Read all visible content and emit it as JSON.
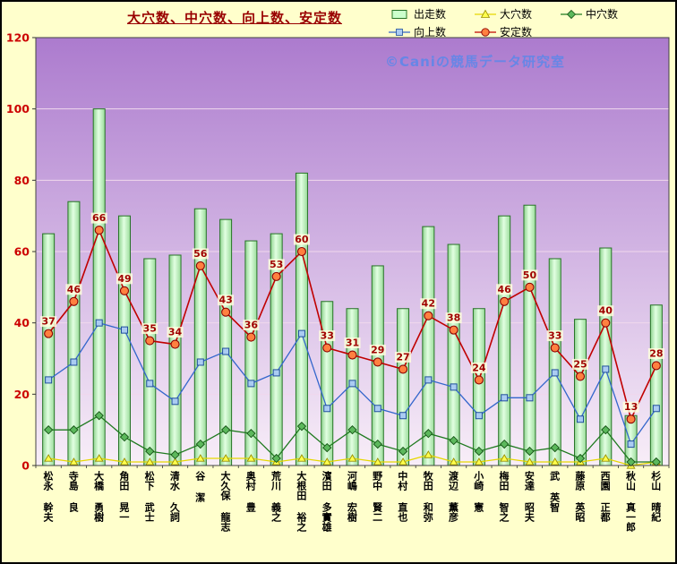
{
  "title": "大穴数、中穴数、向上数、安定数",
  "watermark": "©Caniの競馬データ研究室",
  "legend": [
    {
      "label": "出走数",
      "marker": "bar"
    },
    {
      "label": "大穴数",
      "marker": "triangle"
    },
    {
      "label": "中穴数",
      "marker": "diamond"
    },
    {
      "label": "向上数",
      "marker": "square"
    },
    {
      "label": "安定数",
      "marker": "circle"
    }
  ],
  "colors": {
    "background": "#FFFFCC",
    "plot_gradient_top": "#AC7BCE",
    "plot_gradient_bottom": "#F8EEF8",
    "grid": "#F0D8EC",
    "bar_fill": "#CCFFCC",
    "bar_edge": "#267326",
    "stability_line": "#C00000",
    "stability_marker": "#FF8040",
    "improve_line": "#3366CC",
    "improve_marker": "#AACCF2",
    "midhole_line": "#1F7A1F",
    "midhole_marker": "#5CB85C",
    "bighole_line": "#E6D800",
    "bighole_marker": "#FFFF4D",
    "title_color": "#990000",
    "ytick_color": "#CC0000",
    "data_label_color": "#A00000",
    "data_label_bg": "#FFFFDD",
    "watermark_color": "#5587EB"
  },
  "chart_data": {
    "type": "bar",
    "title": "大穴数、中穴数、向上数、安定数",
    "categories": [
      "松永 幹夫",
      "寺島 良",
      "大橋 勇樹",
      "角田 晃一",
      "松下 武士",
      "清水 久詞",
      "谷 潔",
      "大久保 龍志",
      "奥村 豊",
      "荒川 義之",
      "大根田 裕之",
      "濱田 多實雄",
      "河嶋 宏樹",
      "野中 賢二",
      "中村 直也",
      "牧田 和弥",
      "渡辺 薫彦",
      "小崎 憲",
      "梅田 智之",
      "安達 昭夫",
      "武 英智",
      "藤原 英昭",
      "西園 正都",
      "秋山 真一郎",
      "杉山 晴紀"
    ],
    "series": [
      {
        "name": "出走数",
        "type": "bar",
        "values": [
          65,
          74,
          100,
          70,
          58,
          59,
          72,
          69,
          63,
          65,
          82,
          46,
          44,
          56,
          44,
          67,
          62,
          44,
          70,
          73,
          58,
          41,
          61,
          14,
          45
        ]
      },
      {
        "name": "大穴数",
        "type": "line",
        "marker": "triangle",
        "values": [
          2,
          1,
          2,
          1,
          1,
          1,
          2,
          2,
          2,
          1,
          2,
          1,
          2,
          1,
          1,
          3,
          1,
          1,
          2,
          1,
          1,
          1,
          2,
          0,
          1
        ]
      },
      {
        "name": "中穴数",
        "type": "line",
        "marker": "diamond",
        "values": [
          10,
          10,
          14,
          8,
          4,
          3,
          6,
          10,
          9,
          2,
          11,
          5,
          10,
          6,
          4,
          9,
          7,
          4,
          6,
          4,
          5,
          2,
          10,
          1,
          1
        ]
      },
      {
        "name": "向上数",
        "type": "line",
        "marker": "square",
        "values": [
          24,
          29,
          40,
          38,
          23,
          18,
          29,
          32,
          23,
          26,
          37,
          16,
          23,
          16,
          14,
          24,
          22,
          14,
          19,
          19,
          26,
          13,
          27,
          6,
          16
        ]
      },
      {
        "name": "安定数",
        "type": "line",
        "marker": "circle",
        "data_labels": true,
        "values": [
          37,
          46,
          66,
          49,
          35,
          34,
          56,
          43,
          36,
          53,
          60,
          33,
          31,
          29,
          27,
          42,
          38,
          24,
          46,
          50,
          33,
          25,
          40,
          13,
          28
        ]
      }
    ],
    "ylim": [
      0,
      120
    ],
    "yticks": [
      0,
      20,
      40,
      60,
      80,
      100,
      120
    ],
    "grid": true,
    "legend_position": "top",
    "xlabel": "",
    "ylabel": ""
  }
}
